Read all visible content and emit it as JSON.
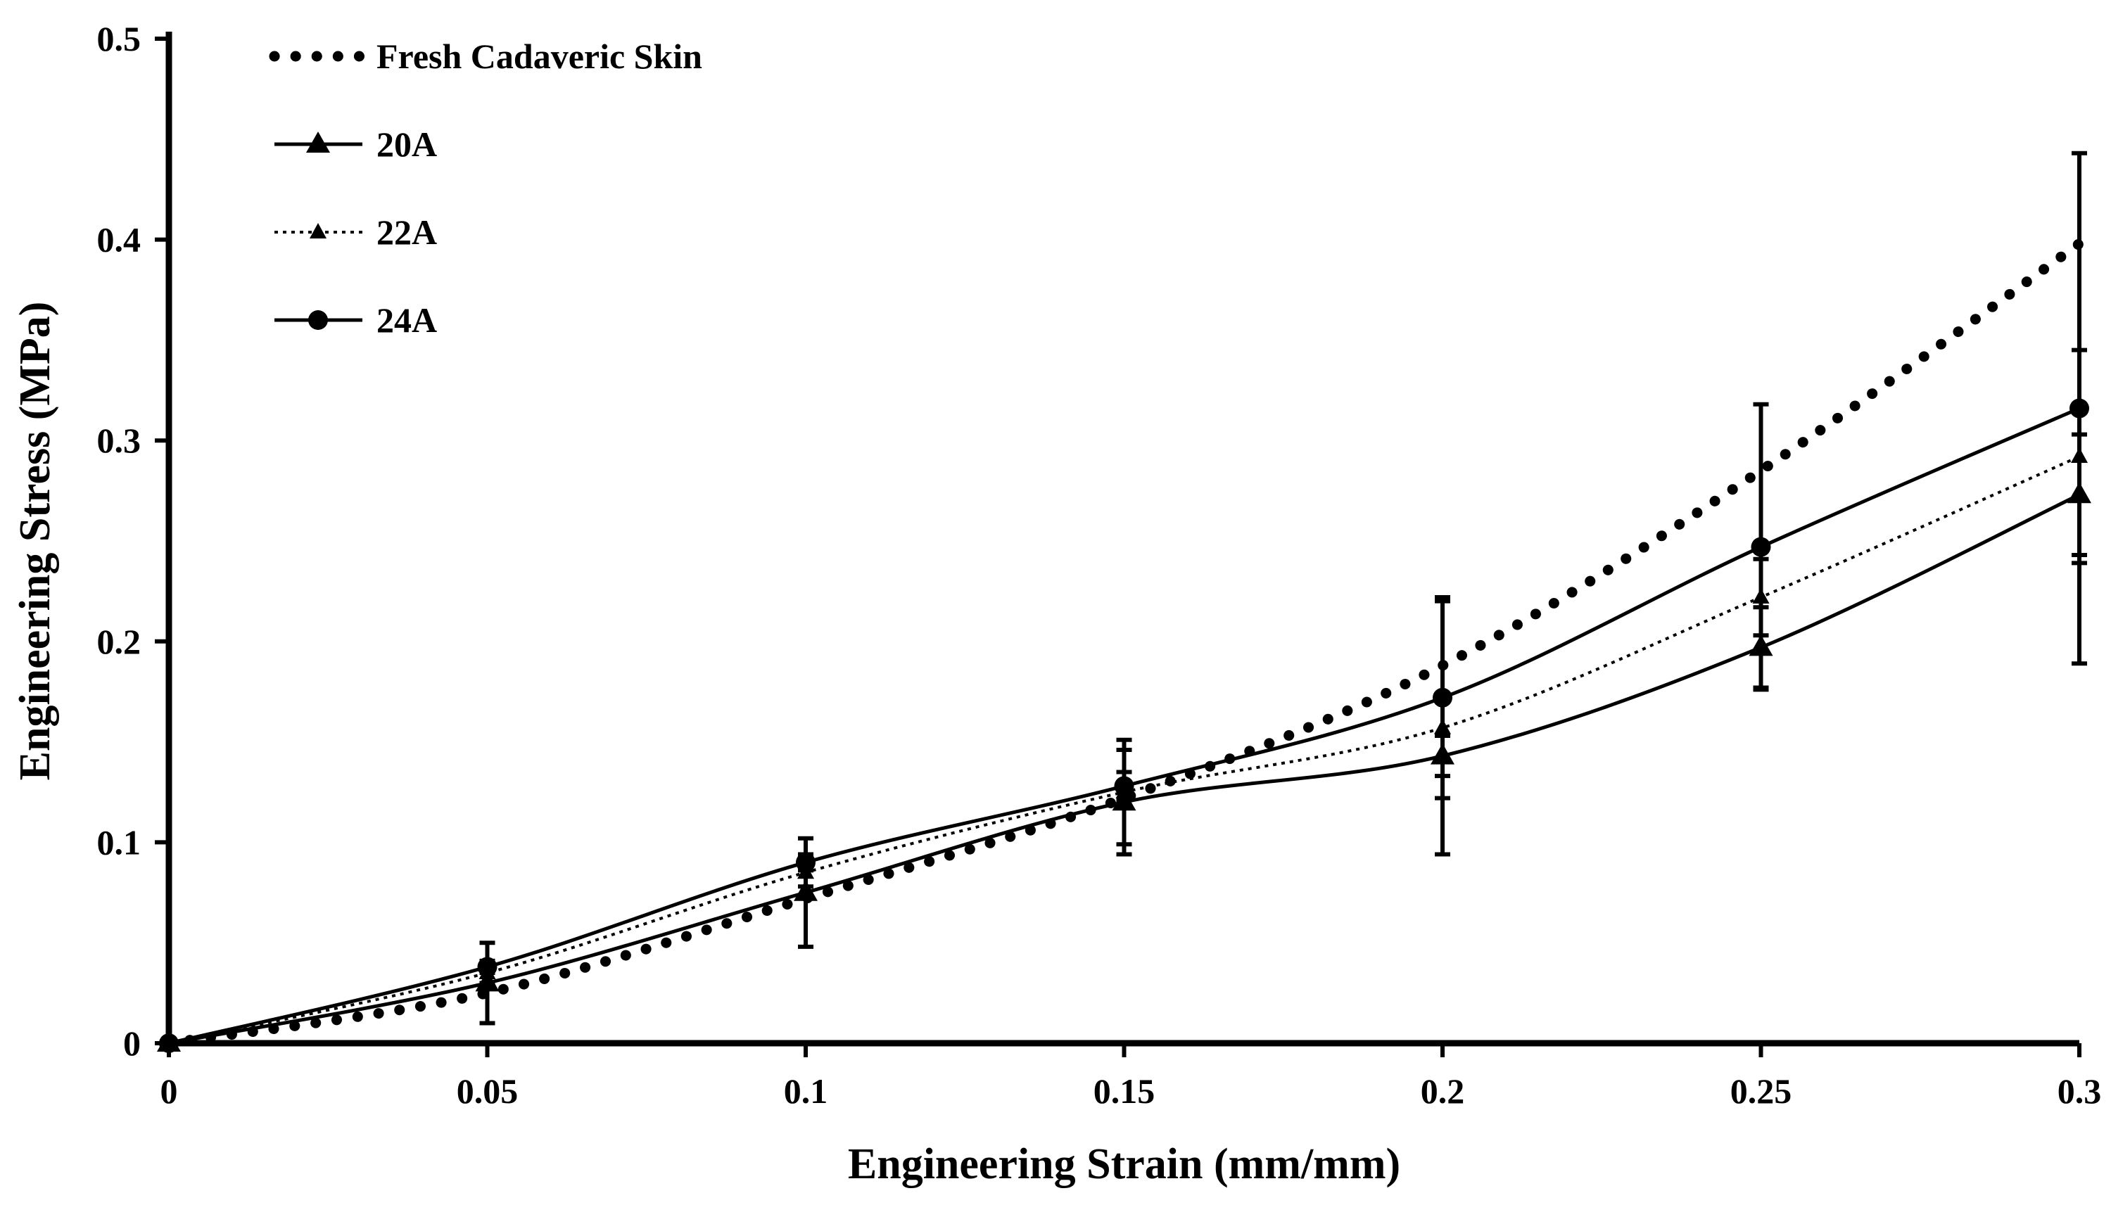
{
  "chart_data": {
    "type": "line",
    "title": "",
    "xlabel": "Engineering Strain (mm/mm)",
    "ylabel": "Engineering Stress (MPa)",
    "xlim": [
      0,
      0.3
    ],
    "ylim": [
      0,
      0.5
    ],
    "xticks": [
      0,
      0.05,
      0.1,
      0.15,
      0.2,
      0.25,
      0.3
    ],
    "yticks": [
      0,
      0.1,
      0.2,
      0.3,
      0.4,
      0.5
    ],
    "xtick_labels": [
      "0",
      "0.05",
      "0.1",
      "0.15",
      "0.2",
      "0.25",
      "0.3"
    ],
    "ytick_labels": [
      "0",
      "0.1",
      "0.2",
      "0.3",
      "0.4",
      "0.5"
    ],
    "grid": false,
    "legend_position": "top-left",
    "series": [
      {
        "name": "Fresh Cadaveric Skin",
        "style": "big-dots",
        "marker": "none",
        "x": [
          0,
          0.05,
          0.1,
          0.15,
          0.2,
          0.25,
          0.3
        ],
        "values": [
          0,
          0.025,
          0.072,
          0.122,
          0.188,
          0.285,
          0.398
        ],
        "error": [
          0,
          0,
          0,
          0,
          0,
          0,
          0
        ]
      },
      {
        "name": "20A",
        "style": "solid",
        "marker": "triangle",
        "x": [
          0,
          0.05,
          0.1,
          0.15,
          0.2,
          0.25,
          0.3
        ],
        "values": [
          0,
          0.03,
          0.075,
          0.12,
          0.143,
          0.197,
          0.273
        ],
        "error": [
          0,
          0.02,
          0.027,
          0.026,
          0.01,
          0.02,
          0.03
        ]
      },
      {
        "name": "22A",
        "style": "dotted",
        "marker": "small-triangle",
        "x": [
          0,
          0.05,
          0.1,
          0.15,
          0.2,
          0.25,
          0.3
        ],
        "values": [
          0,
          0.035,
          0.085,
          0.125,
          0.157,
          0.222,
          0.292
        ],
        "error": [
          0,
          0.005,
          0.007,
          0.026,
          0.063,
          0.019,
          0.053
        ]
      },
      {
        "name": "24A",
        "style": "solid",
        "marker": "circle",
        "x": [
          0,
          0.05,
          0.1,
          0.15,
          0.2,
          0.25,
          0.3
        ],
        "values": [
          0,
          0.038,
          0.09,
          0.128,
          0.172,
          0.247,
          0.316
        ],
        "error": [
          0,
          0.003,
          0.004,
          0.007,
          0.05,
          0.071,
          0.127
        ]
      }
    ]
  }
}
